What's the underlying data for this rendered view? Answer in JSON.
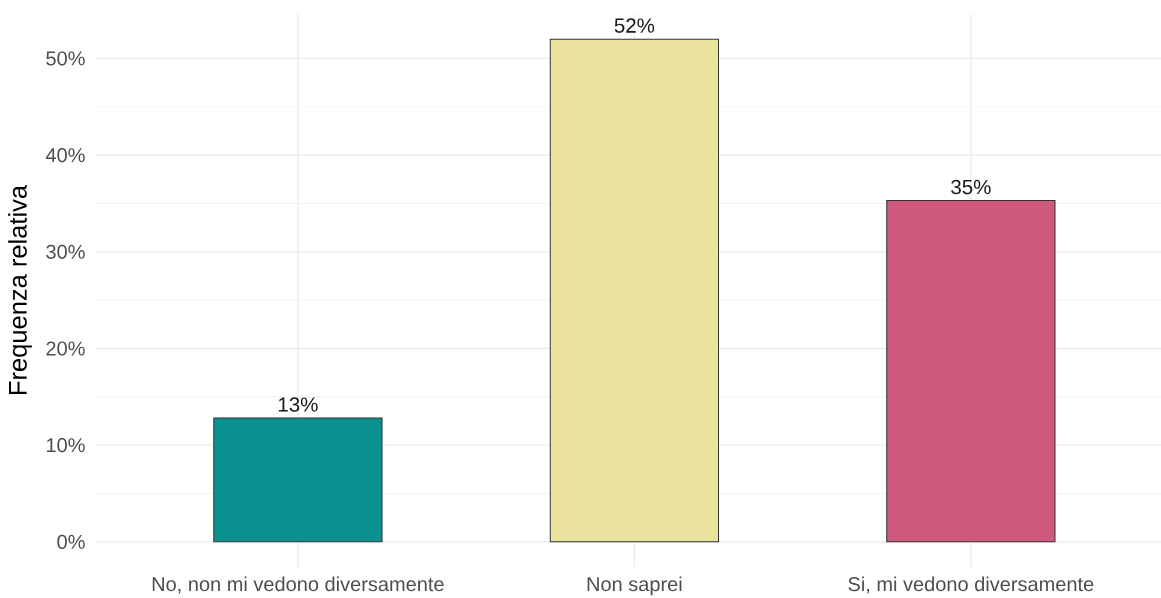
{
  "chart_data": {
    "type": "bar",
    "ylabel": "Frequenza relativa",
    "categories": [
      "No, non mi vedono diversamente",
      "Non saprei",
      "Si, mi vedono diversamente"
    ],
    "values": [
      12.8,
      52.0,
      35.3
    ],
    "colors": [
      "#0b918f",
      "#e9e39d",
      "#cf597c"
    ],
    "value_labels": [
      "13%",
      "52%",
      "35%"
    ],
    "ylim": [
      -2.6,
      54.6
    ],
    "yticks": [
      {
        "value": 0,
        "label": "0%"
      },
      {
        "value": 5,
        "label": null
      },
      {
        "value": 10,
        "label": "10%"
      },
      {
        "value": 15,
        "label": null
      },
      {
        "value": 20,
        "label": "20%"
      },
      {
        "value": 25,
        "label": null
      },
      {
        "value": 30,
        "label": "30%"
      },
      {
        "value": 35,
        "label": null
      },
      {
        "value": 40,
        "label": "40%"
      },
      {
        "value": 45,
        "label": null
      },
      {
        "value": 50,
        "label": "50%"
      }
    ],
    "grid": true
  }
}
